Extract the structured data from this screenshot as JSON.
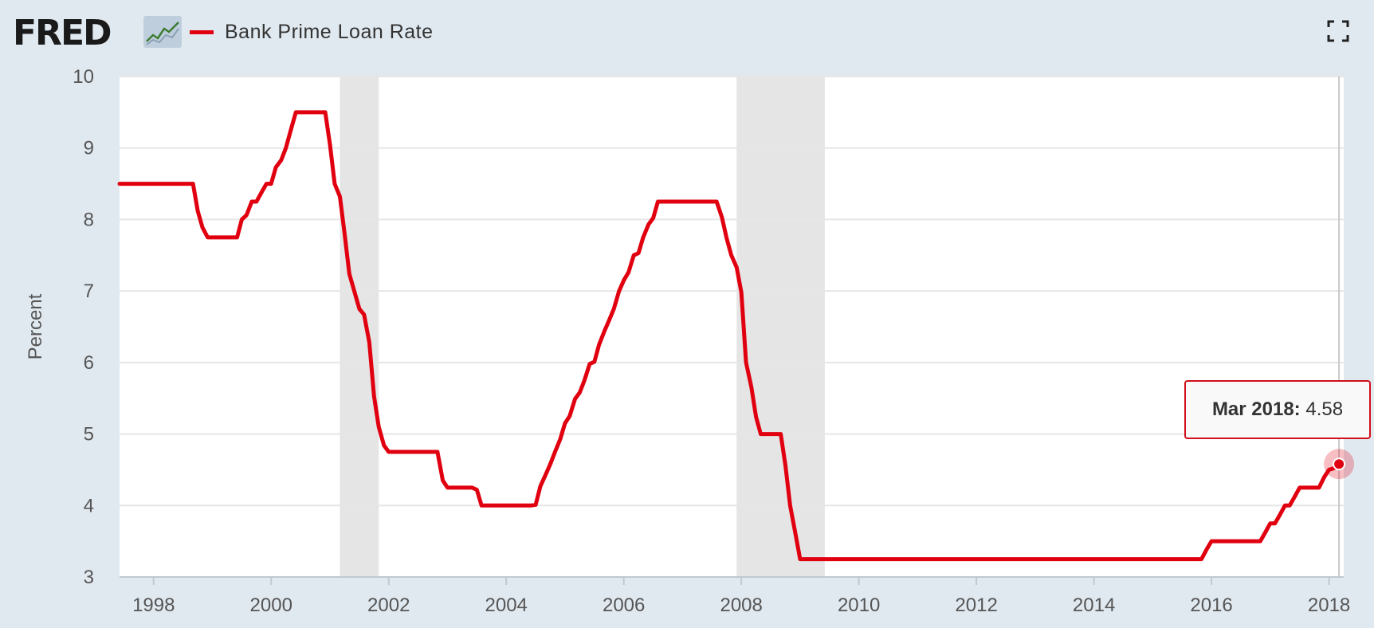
{
  "header": {
    "logo_text": "FRED",
    "series_title": "Bank Prime Loan Rate",
    "icons": [
      "fred-chart-icon",
      "fullscreen-icon"
    ]
  },
  "tooltip": {
    "date": "Mar 2018:",
    "value": "4.58"
  },
  "colors": {
    "series": "#e1000f",
    "recession": "#e5e5e5",
    "background": "#e1e9f0",
    "plot_background": "#ffffff",
    "grid": "#e6e6e6"
  },
  "chart_data": {
    "type": "line",
    "ylabel": "Percent",
    "xlabel": "",
    "title": "Bank Prime Loan Rate",
    "ylim": [
      3,
      10
    ],
    "xlim": [
      1997.42,
      2018.25
    ],
    "x_ticks": [
      "1998",
      "2000",
      "2002",
      "2004",
      "2006",
      "2008",
      "2010",
      "2012",
      "2014",
      "2016",
      "2018"
    ],
    "y_ticks": [
      "3",
      "4",
      "5",
      "6",
      "7",
      "8",
      "9",
      "10"
    ],
    "grid": true,
    "recessions": [
      [
        2001.17,
        2001.83
      ],
      [
        2007.92,
        2009.42
      ]
    ],
    "series": [
      {
        "name": "Bank Prime Loan Rate",
        "points": [
          [
            1997.42,
            8.5
          ],
          [
            1998.67,
            8.5
          ],
          [
            1998.75,
            8.12
          ],
          [
            1998.83,
            7.89
          ],
          [
            1998.92,
            7.75
          ],
          [
            1999.42,
            7.75
          ],
          [
            1999.5,
            8.0
          ],
          [
            1999.58,
            8.06
          ],
          [
            1999.67,
            8.25
          ],
          [
            1999.75,
            8.25
          ],
          [
            1999.83,
            8.37
          ],
          [
            1999.92,
            8.5
          ],
          [
            2000.0,
            8.5
          ],
          [
            2000.08,
            8.73
          ],
          [
            2000.17,
            8.83
          ],
          [
            2000.25,
            9.0
          ],
          [
            2000.33,
            9.24
          ],
          [
            2000.42,
            9.5
          ],
          [
            2000.92,
            9.5
          ],
          [
            2001.0,
            9.05
          ],
          [
            2001.08,
            8.5
          ],
          [
            2001.17,
            8.32
          ],
          [
            2001.25,
            7.8
          ],
          [
            2001.33,
            7.24
          ],
          [
            2001.42,
            6.98
          ],
          [
            2001.5,
            6.75
          ],
          [
            2001.58,
            6.67
          ],
          [
            2001.67,
            6.28
          ],
          [
            2001.75,
            5.53
          ],
          [
            2001.83,
            5.1
          ],
          [
            2001.92,
            4.84
          ],
          [
            2002.0,
            4.75
          ],
          [
            2002.83,
            4.75
          ],
          [
            2002.92,
            4.35
          ],
          [
            2003.0,
            4.25
          ],
          [
            2003.42,
            4.25
          ],
          [
            2003.5,
            4.22
          ],
          [
            2003.58,
            4.0
          ],
          [
            2004.42,
            4.0
          ],
          [
            2004.5,
            4.01
          ],
          [
            2004.58,
            4.27
          ],
          [
            2004.67,
            4.43
          ],
          [
            2004.75,
            4.58
          ],
          [
            2004.83,
            4.75
          ],
          [
            2004.92,
            4.93
          ],
          [
            2005.0,
            5.15
          ],
          [
            2005.08,
            5.25
          ],
          [
            2005.17,
            5.49
          ],
          [
            2005.25,
            5.58
          ],
          [
            2005.33,
            5.75
          ],
          [
            2005.42,
            5.98
          ],
          [
            2005.5,
            6.01
          ],
          [
            2005.58,
            6.25
          ],
          [
            2005.67,
            6.44
          ],
          [
            2005.75,
            6.59
          ],
          [
            2005.83,
            6.75
          ],
          [
            2005.92,
            7.0
          ],
          [
            2006.0,
            7.15
          ],
          [
            2006.08,
            7.26
          ],
          [
            2006.17,
            7.5
          ],
          [
            2006.25,
            7.53
          ],
          [
            2006.33,
            7.75
          ],
          [
            2006.42,
            7.93
          ],
          [
            2006.5,
            8.02
          ],
          [
            2006.58,
            8.25
          ],
          [
            2007.58,
            8.25
          ],
          [
            2007.67,
            8.03
          ],
          [
            2007.75,
            7.74
          ],
          [
            2007.83,
            7.5
          ],
          [
            2007.92,
            7.33
          ],
          [
            2008.0,
            6.98
          ],
          [
            2008.08,
            6.0
          ],
          [
            2008.17,
            5.66
          ],
          [
            2008.25,
            5.24
          ],
          [
            2008.33,
            5.0
          ],
          [
            2008.67,
            5.0
          ],
          [
            2008.75,
            4.56
          ],
          [
            2008.83,
            4.0
          ],
          [
            2008.92,
            3.61
          ],
          [
            2009.0,
            3.25
          ],
          [
            2015.83,
            3.25
          ],
          [
            2015.92,
            3.39
          ],
          [
            2016.0,
            3.5
          ],
          [
            2016.83,
            3.5
          ],
          [
            2016.92,
            3.63
          ],
          [
            2017.0,
            3.75
          ],
          [
            2017.08,
            3.75
          ],
          [
            2017.17,
            3.88
          ],
          [
            2017.25,
            4.0
          ],
          [
            2017.33,
            4.0
          ],
          [
            2017.42,
            4.13
          ],
          [
            2017.5,
            4.25
          ],
          [
            2017.83,
            4.25
          ],
          [
            2017.92,
            4.4
          ],
          [
            2018.0,
            4.5
          ],
          [
            2018.08,
            4.52
          ],
          [
            2018.17,
            4.58
          ]
        ]
      }
    ],
    "highlight": {
      "date": "Mar 2018",
      "x": 2018.17,
      "y": 4.58
    }
  }
}
